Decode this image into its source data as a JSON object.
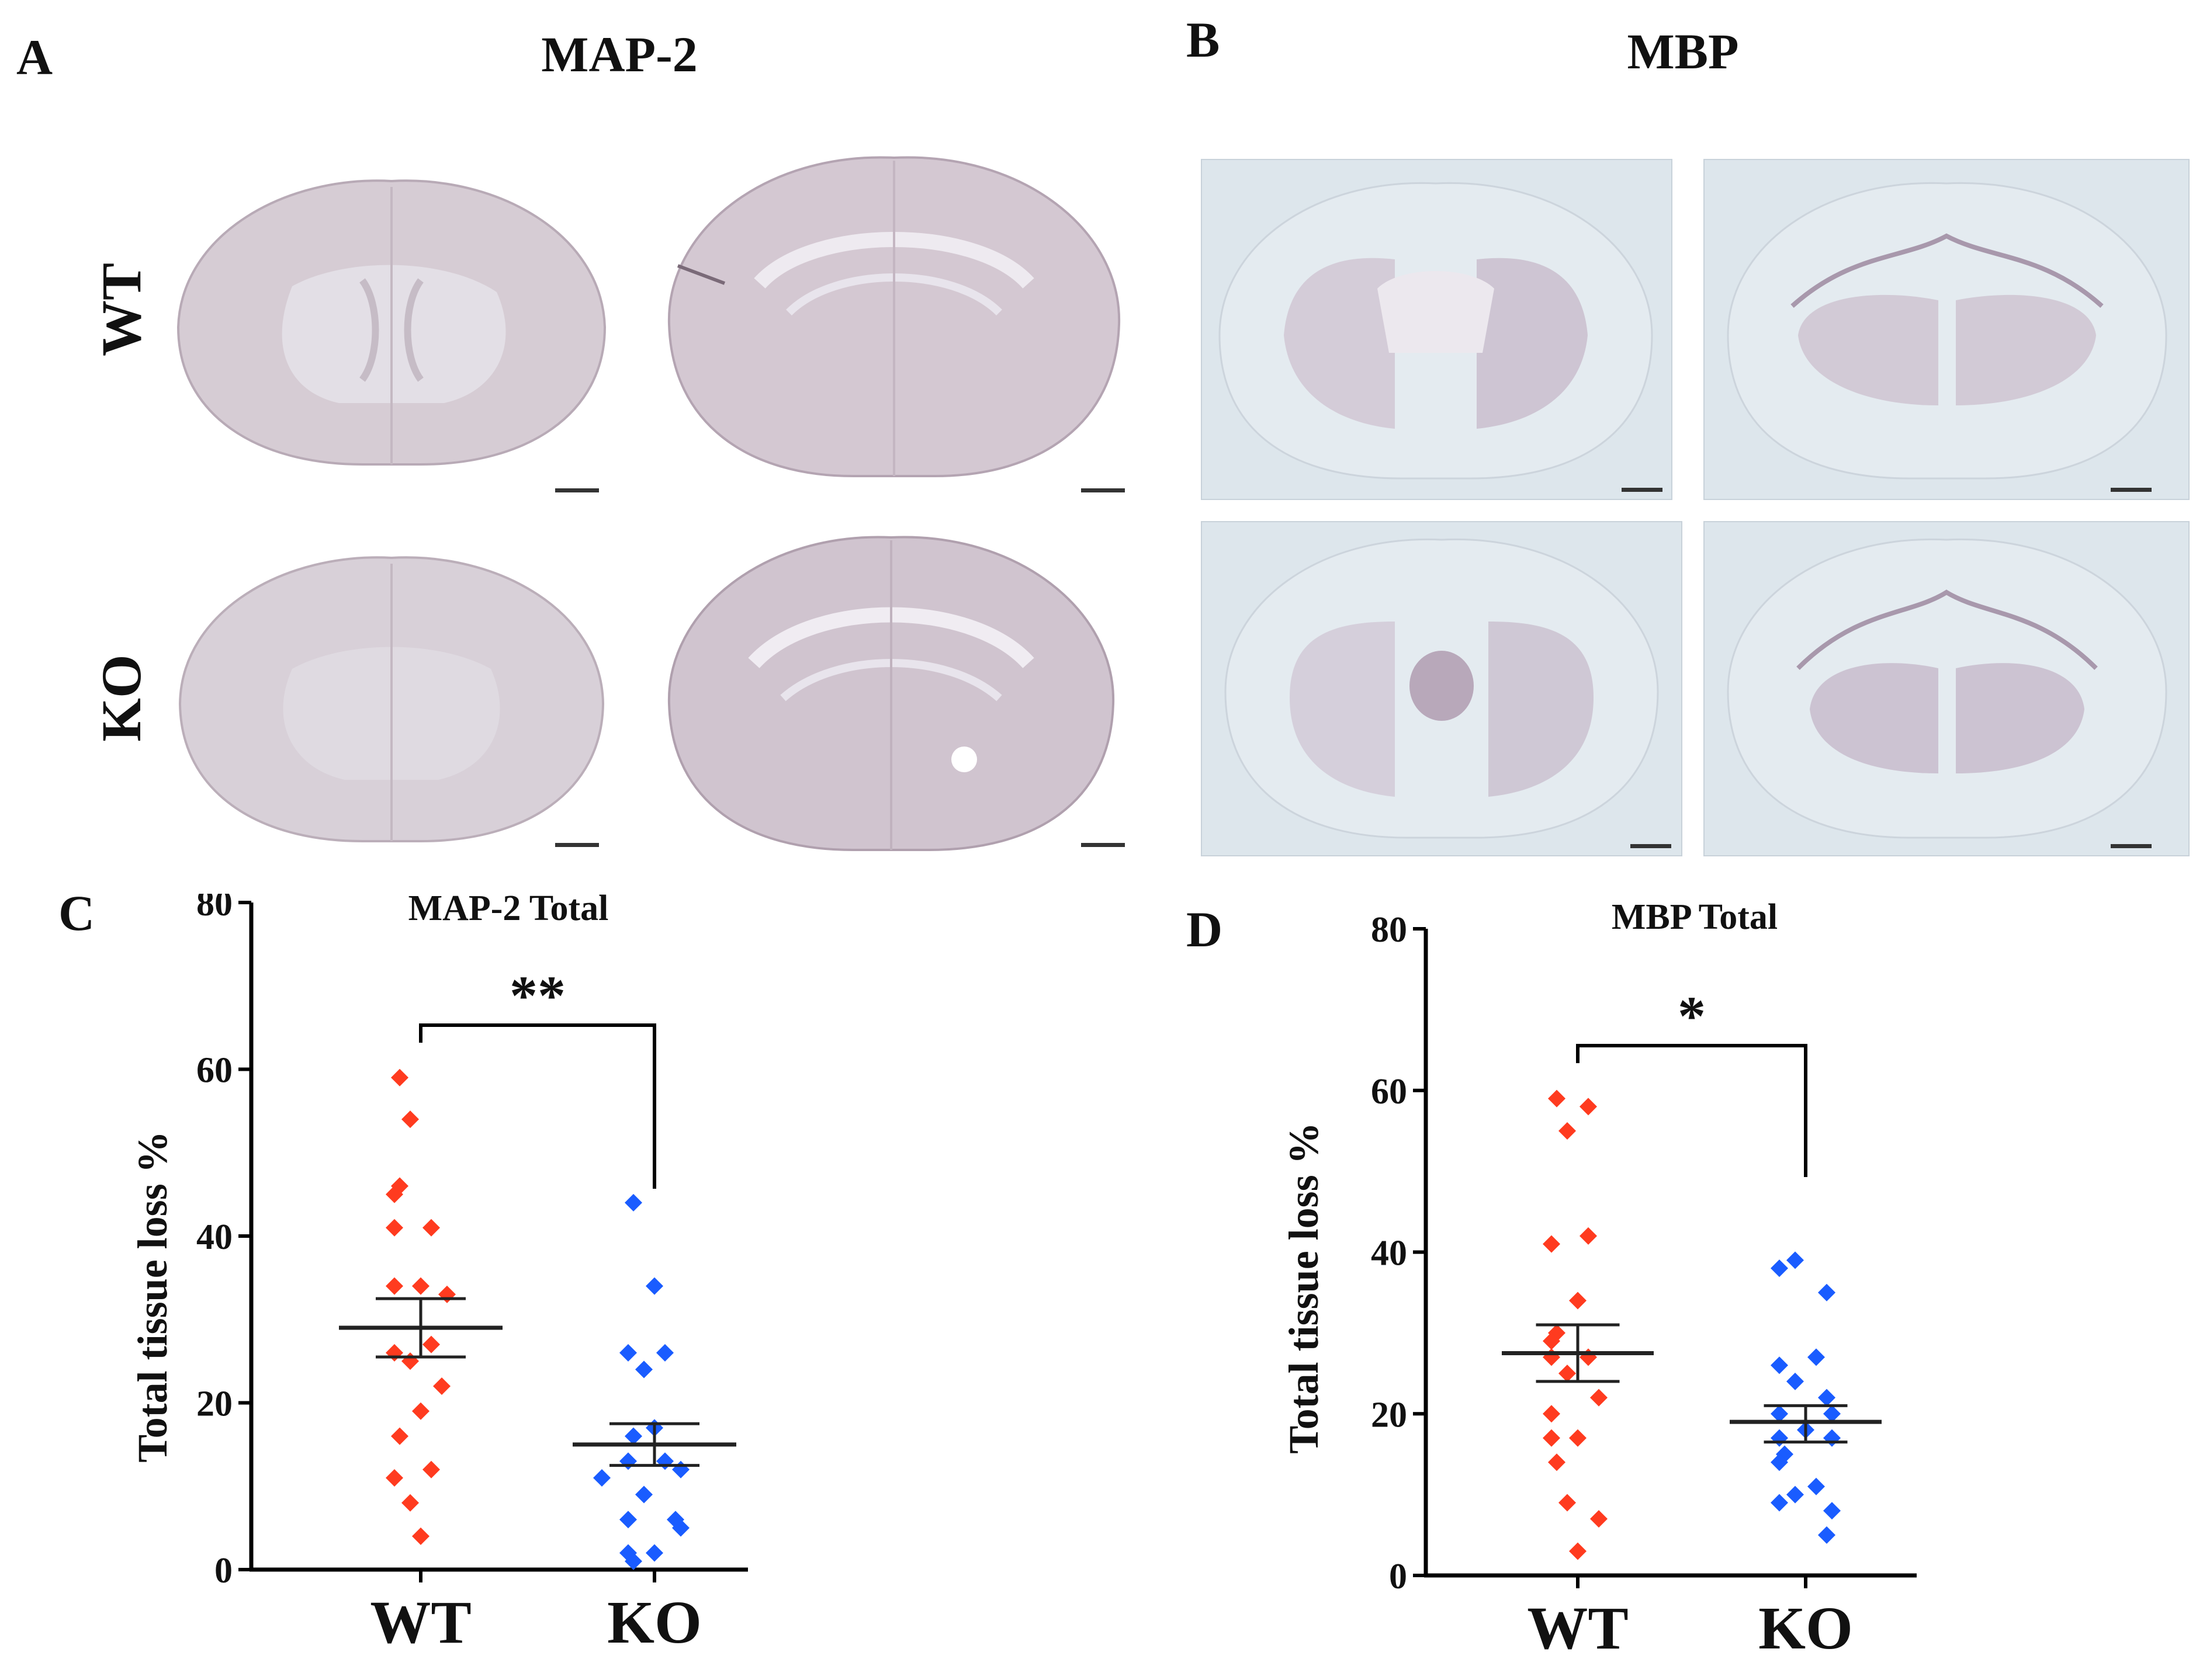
{
  "panels": {
    "a": {
      "letter": "A",
      "title": "MAP-2",
      "rows": [
        "WT",
        "KO"
      ]
    },
    "b": {
      "letter": "B",
      "title": "MBP"
    },
    "c": {
      "letter": "C"
    },
    "d": {
      "letter": "D"
    }
  },
  "colors": {
    "wt": "#ff3b1f",
    "ko": "#1a5cff",
    "axis": "#000000",
    "map2_tissue": "#d9ced6",
    "mbp_bg": "#dfe8ee"
  },
  "chart_data": [
    {
      "type": "scatter",
      "title": "MAP-2 Total",
      "ylabel": "Total tissue loss %",
      "xlabel": "",
      "categories": [
        "WT",
        "KO"
      ],
      "ylim": [
        0,
        80
      ],
      "yticks": [
        0,
        20,
        40,
        60,
        80
      ],
      "significance": "**",
      "grid": false,
      "series": [
        {
          "category": "WT",
          "color": "#ff3b1f",
          "mean": 29,
          "sem_low": 25.5,
          "sem_high": 32.5,
          "values": [
            59,
            54,
            46,
            45,
            41,
            41,
            34,
            34,
            33,
            27,
            26,
            25,
            22,
            19,
            16,
            12,
            11,
            8,
            4
          ]
        },
        {
          "category": "KO",
          "color": "#1a5cff",
          "mean": 15,
          "sem_low": 12.5,
          "sem_high": 17.5,
          "values": [
            44,
            34,
            26,
            26,
            24,
            17,
            16,
            13,
            13,
            12,
            11,
            9,
            6,
            6,
            5,
            2,
            2,
            1
          ]
        }
      ]
    },
    {
      "type": "scatter",
      "title": "MBP Total",
      "ylabel": "Total tissue loss %",
      "xlabel": "",
      "categories": [
        "WT",
        "KO"
      ],
      "ylim": [
        0,
        80
      ],
      "yticks": [
        0,
        20,
        40,
        60,
        80
      ],
      "significance": "*",
      "grid": false,
      "series": [
        {
          "category": "WT",
          "color": "#ff3b1f",
          "mean": 27.5,
          "sem_low": 24,
          "sem_high": 31,
          "values": [
            59,
            58,
            55,
            42,
            41,
            34,
            30,
            29,
            27,
            27,
            25,
            22,
            20,
            17,
            17,
            14,
            9,
            7,
            3
          ]
        },
        {
          "category": "KO",
          "color": "#1a5cff",
          "mean": 19,
          "sem_low": 16.5,
          "sem_high": 21,
          "values": [
            39,
            38,
            35,
            27,
            26,
            24,
            22,
            20,
            20,
            18,
            17,
            17,
            15,
            14,
            11,
            10,
            9,
            8,
            5
          ]
        }
      ]
    }
  ]
}
